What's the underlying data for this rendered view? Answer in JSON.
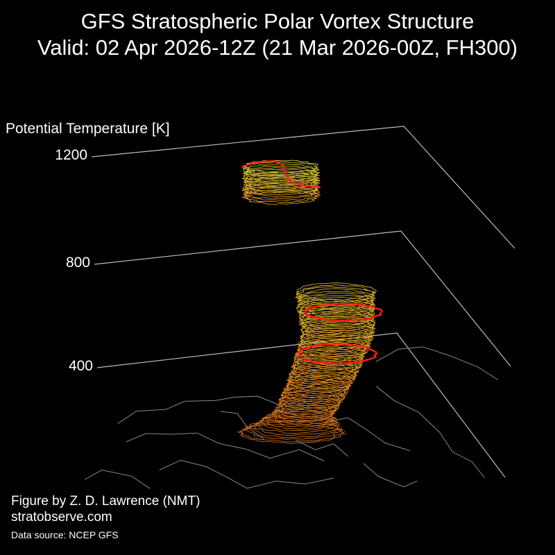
{
  "title": {
    "line1": "GFS Stratospheric Polar Vortex Structure",
    "line2": "Valid: 02 Apr 2026-12Z  (21 Mar 2026-00Z, FH300)"
  },
  "chart_data": {
    "type": "3d-isosurface",
    "zlabel": "Potential Temperature [K]",
    "zticks": [
      400,
      800,
      1200
    ],
    "grid": true,
    "colors": {
      "background": "#000000",
      "grid_line": "#bfbfbf",
      "coastline": "#8a8a8a",
      "highlight_contour": "#ff1a1a",
      "low_level": "#e0701a",
      "mid_level": "#f0a020",
      "upper_level": "#e8e040"
    }
  },
  "credits": {
    "author": "Figure by Z. D. Lawrence (NMT)",
    "site": "stratobserve.com",
    "source": "Data source: NCEP GFS"
  }
}
